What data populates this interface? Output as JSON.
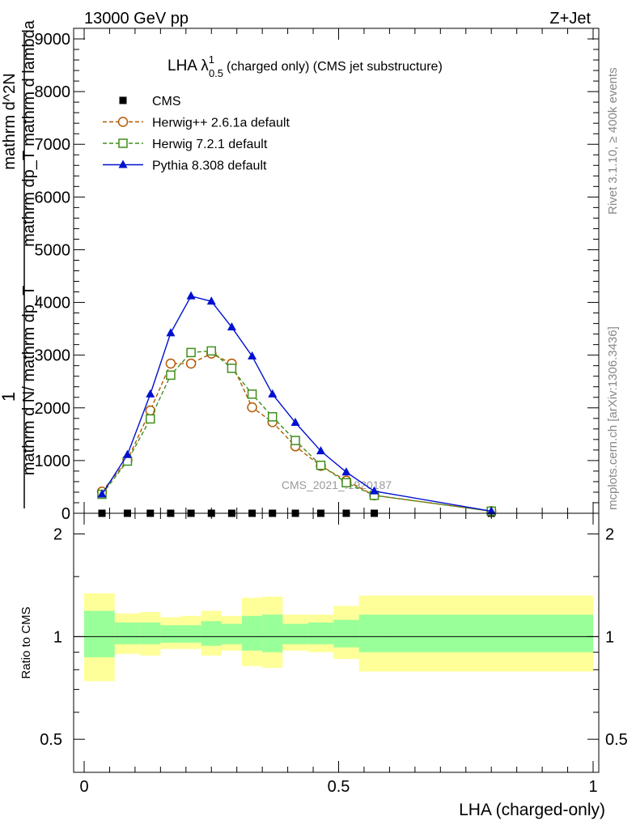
{
  "header": {
    "left": "13000 GeV pp",
    "right": "Z+Jet"
  },
  "side_labels": {
    "rivet": "Rivet 3.1.10, ≥ 400k events",
    "mcplots": "mcplots.cern.ch [arXiv:1306.3436]"
  },
  "watermark": "CMS_2021_I1920187",
  "chart_data": [
    {
      "type": "line",
      "panel": "main",
      "title": "LHA λ",
      "title_sup": "1",
      "title_sub": "0.5",
      "title_rest": "(charged only) (CMS jet substructure)",
      "ylabel_numer": "mathrm d^2N",
      "ylabel_num_bottom": "mathrm dp_T mathrm d lambda",
      "ylabel_denom": "mathrm d N/ mathrm dp_T",
      "ylabel_one": "1",
      "ylabel_fraction_denominator": "mathrm d N/ mathrm dp_T",
      "xlim": [
        0,
        1
      ],
      "ylim": [
        0,
        9200
      ],
      "yticks": [
        0,
        1000,
        2000,
        3000,
        4000,
        5000,
        6000,
        7000,
        8000,
        9000
      ],
      "ytick_labels": [
        "0",
        "1000",
        "2000",
        "3000",
        "4000",
        "5000",
        "6000",
        "7000",
        "8000",
        "9000"
      ],
      "legend_position": "top-left",
      "series": [
        {
          "name": "CMS",
          "color": "#000000",
          "marker": "square-filled",
          "x": [
            0.035,
            0.085,
            0.13,
            0.17,
            0.21,
            0.25,
            0.29,
            0.33,
            0.37,
            0.415,
            0.465,
            0.515,
            0.57,
            0.8
          ],
          "y": [
            0,
            0,
            0,
            0,
            0,
            0,
            0,
            0,
            0,
            0,
            0,
            0,
            0,
            0
          ]
        },
        {
          "name": "Herwig++ 2.6.1a default",
          "color": "#b35900",
          "marker": "circle-open",
          "dashed": true,
          "x": [
            0.035,
            0.085,
            0.13,
            0.17,
            0.21,
            0.25,
            0.29,
            0.33,
            0.37,
            0.415,
            0.465,
            0.515,
            0.57,
            0.8
          ],
          "y": [
            410,
            1010,
            1950,
            2840,
            2840,
            3030,
            2840,
            2010,
            1730,
            1270,
            900,
            620,
            340,
            40
          ]
        },
        {
          "name": "Herwig 7.2.1 default",
          "color": "#3f8f1a",
          "marker": "square-open",
          "dashed": true,
          "x": [
            0.035,
            0.085,
            0.13,
            0.17,
            0.21,
            0.25,
            0.29,
            0.33,
            0.37,
            0.415,
            0.465,
            0.515,
            0.57,
            0.8
          ],
          "y": [
            360,
            990,
            1790,
            2620,
            3050,
            3080,
            2750,
            2260,
            1830,
            1380,
            910,
            580,
            340,
            40
          ]
        },
        {
          "name": "Pythia 8.308 default",
          "color": "#0010d0",
          "marker": "triangle-filled",
          "x": [
            0.035,
            0.085,
            0.13,
            0.17,
            0.21,
            0.25,
            0.29,
            0.33,
            0.37,
            0.415,
            0.465,
            0.515,
            0.57,
            0.8
          ],
          "y": [
            360,
            1110,
            2260,
            3420,
            4120,
            4020,
            3530,
            2980,
            2260,
            1720,
            1180,
            780,
            420,
            40
          ]
        }
      ]
    },
    {
      "type": "area",
      "panel": "ratio",
      "ylabel": "Ratio to CMS",
      "xlabel": "LHA (charged-only)",
      "xlim": [
        0,
        1
      ],
      "ylim": [
        0.4,
        2.3
      ],
      "ylog": true,
      "xticks": [
        0,
        0.5,
        1
      ],
      "xtick_labels": [
        "0",
        "0.5",
        "1"
      ],
      "yticks": [
        0.5,
        1,
        2
      ],
      "ytick_labels": [
        "0.5",
        "1",
        "2"
      ],
      "reference_line": 1,
      "bin_edges": [
        0,
        0.06,
        0.11,
        0.15,
        0.19,
        0.23,
        0.27,
        0.31,
        0.35,
        0.39,
        0.44,
        0.49,
        0.54,
        0.6,
        1.0
      ],
      "band_2sigma": {
        "color": "#ffff99",
        "low": [
          0.74,
          0.89,
          0.88,
          0.92,
          0.92,
          0.88,
          0.91,
          0.82,
          0.81,
          0.91,
          0.9,
          0.86,
          0.79,
          0.79
        ],
        "high": [
          1.34,
          1.17,
          1.18,
          1.14,
          1.15,
          1.19,
          1.15,
          1.3,
          1.31,
          1.16,
          1.16,
          1.23,
          1.32,
          1.32
        ]
      },
      "band_1sigma": {
        "color": "#99ff99",
        "low": [
          0.87,
          0.95,
          0.95,
          0.96,
          0.96,
          0.94,
          0.95,
          0.91,
          0.9,
          0.95,
          0.95,
          0.93,
          0.9,
          0.9
        ],
        "high": [
          1.19,
          1.1,
          1.1,
          1.08,
          1.08,
          1.11,
          1.09,
          1.15,
          1.16,
          1.09,
          1.1,
          1.12,
          1.16,
          1.16
        ]
      }
    }
  ]
}
